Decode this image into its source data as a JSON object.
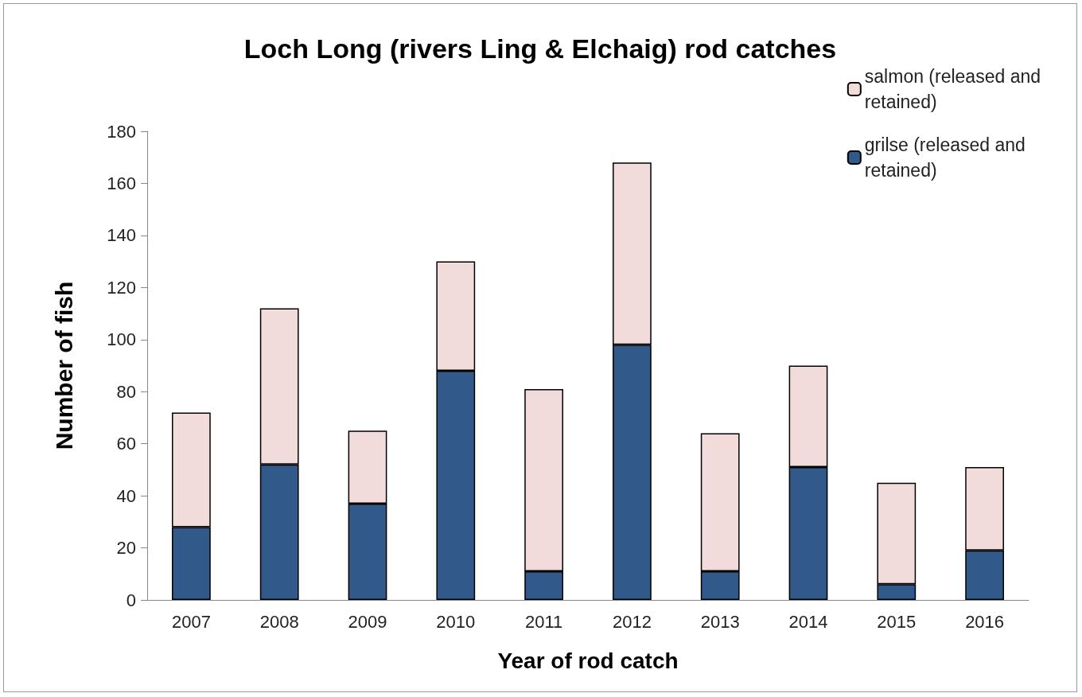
{
  "chart_data": {
    "type": "bar",
    "title": "Loch Long (rivers Ling & Elchaig) rod catches",
    "xlabel": "Year of rod catch",
    "ylabel": "Number of fish",
    "categories": [
      "2007",
      "2008",
      "2009",
      "2010",
      "2011",
      "2012",
      "2013",
      "2014",
      "2015",
      "2016"
    ],
    "stacked": true,
    "series": [
      {
        "name": "grilse (released and retained)",
        "color": "#31598a",
        "values": [
          28,
          52,
          37,
          88,
          11,
          98,
          11,
          51,
          6,
          19
        ]
      },
      {
        "name": "salmon (released and retained)",
        "color": "#f2dcdb",
        "values": [
          44,
          60,
          28,
          42,
          70,
          70,
          53,
          39,
          39,
          32
        ]
      }
    ],
    "ylim": [
      0,
      180
    ],
    "yticks": [
      0,
      20,
      40,
      60,
      80,
      100,
      120,
      140,
      160,
      180
    ],
    "grid": false,
    "legend": "top right"
  }
}
